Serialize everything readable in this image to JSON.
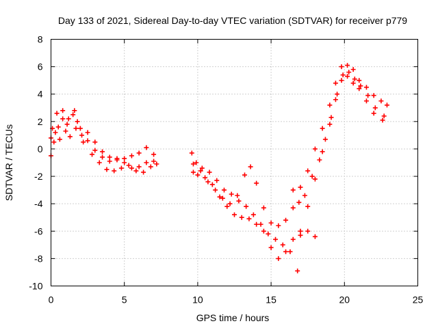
{
  "chart_data": {
    "type": "scatter",
    "title": "Day 133 of 2021, Sidereal Day-to-day VTEC variation (SDTVAR) for receiver p779",
    "xlabel": "GPS time / hours",
    "ylabel": "SDTVAR / TECUs",
    "xlim": [
      0,
      25
    ],
    "ylim": [
      -10,
      8
    ],
    "xticks": [
      0,
      5,
      10,
      15,
      20,
      25
    ],
    "yticks": [
      -10,
      -8,
      -6,
      -4,
      -2,
      0,
      2,
      4,
      6,
      8
    ],
    "grid": true,
    "marker": "plus",
    "color": "#ff0000",
    "series": [
      {
        "points": [
          [
            0.0,
            -0.5
          ],
          [
            0.2,
            0.5
          ],
          [
            0.5,
            1.6
          ],
          [
            0.8,
            2.2
          ],
          [
            1.1,
            1.8
          ],
          [
            1.5,
            2.5
          ],
          [
            1.8,
            2.0
          ],
          [
            2.1,
            1.0
          ],
          [
            2.5,
            0.6
          ],
          [
            3.0,
            -0.1
          ],
          [
            3.5,
            -0.6
          ],
          [
            4.0,
            -0.9
          ],
          [
            4.5,
            -0.8
          ],
          [
            5.0,
            -1.0
          ],
          [
            5.5,
            -1.4
          ],
          [
            6.0,
            -1.3
          ],
          [
            6.5,
            -1.0
          ],
          [
            7.0,
            -0.9
          ],
          [
            9.6,
            -0.3
          ],
          [
            9.9,
            -1.0
          ],
          [
            10.3,
            -1.4
          ],
          [
            10.8,
            -1.7
          ],
          [
            11.3,
            -2.3
          ],
          [
            11.8,
            -3.0
          ],
          [
            12.3,
            -3.3
          ],
          [
            12.8,
            -3.8
          ],
          [
            13.3,
            -4.2
          ],
          [
            13.8,
            -4.8
          ],
          [
            14.3,
            -5.5
          ],
          [
            14.8,
            -6.2
          ],
          [
            15.3,
            -6.6
          ],
          [
            15.8,
            -7.0
          ],
          [
            16.3,
            -7.5
          ],
          [
            16.8,
            -8.9
          ],
          [
            17.0,
            -6.0
          ],
          [
            17.5,
            -4.2
          ],
          [
            18.0,
            -2.2
          ],
          [
            18.5,
            -0.2
          ],
          [
            19.0,
            1.8
          ],
          [
            19.4,
            3.6
          ],
          [
            19.8,
            5.0
          ],
          [
            20.2,
            5.3
          ],
          [
            20.6,
            4.8
          ],
          [
            21.0,
            4.4
          ],
          [
            21.5,
            3.5
          ],
          [
            22.0,
            2.6
          ],
          [
            22.6,
            2.1
          ]
        ]
      },
      {
        "points": [
          [
            0.1,
            1.5
          ],
          [
            0.4,
            2.6
          ],
          [
            0.8,
            2.8
          ],
          [
            1.2,
            2.2
          ],
          [
            1.6,
            2.8
          ],
          [
            2.0,
            1.5
          ],
          [
            2.5,
            1.2
          ],
          [
            3.0,
            0.5
          ],
          [
            3.5,
            -0.2
          ],
          [
            4.0,
            -0.6
          ],
          [
            4.5,
            -0.7
          ],
          [
            5.0,
            -0.7
          ],
          [
            5.5,
            -0.5
          ],
          [
            6.0,
            -0.3
          ],
          [
            6.5,
            0.1
          ],
          [
            7.0,
            -0.4
          ],
          [
            9.7,
            -1.7
          ],
          [
            10.0,
            -1.9
          ],
          [
            10.5,
            -2.1
          ],
          [
            11.0,
            -2.6
          ],
          [
            11.5,
            -3.5
          ],
          [
            12.0,
            -4.2
          ],
          [
            12.5,
            -4.8
          ],
          [
            13.0,
            -5.0
          ],
          [
            13.5,
            -5.1
          ],
          [
            14.0,
            -5.5
          ],
          [
            14.5,
            -6.0
          ],
          [
            15.0,
            -7.2
          ],
          [
            15.5,
            -8.0
          ],
          [
            16.0,
            -7.5
          ],
          [
            16.5,
            -6.6
          ],
          [
            17.0,
            -6.3
          ],
          [
            17.5,
            -6.0
          ],
          [
            18.0,
            -6.4
          ],
          [
            16.5,
            -3.0
          ],
          [
            17.0,
            -2.8
          ],
          [
            17.5,
            -1.6
          ],
          [
            18.0,
            0.0
          ],
          [
            18.5,
            1.5
          ],
          [
            19.0,
            3.2
          ],
          [
            19.4,
            4.8
          ],
          [
            19.8,
            6.0
          ],
          [
            20.2,
            6.1
          ],
          [
            20.6,
            5.8
          ],
          [
            21.0,
            5.0
          ],
          [
            21.5,
            4.5
          ],
          [
            22.0,
            3.9
          ],
          [
            22.5,
            3.5
          ],
          [
            22.9,
            3.2
          ]
        ]
      },
      {
        "points": [
          [
            0.0,
            0.8
          ],
          [
            0.3,
            1.2
          ],
          [
            0.6,
            0.7
          ],
          [
            1.0,
            1.3
          ],
          [
            1.3,
            0.9
          ],
          [
            1.7,
            1.5
          ],
          [
            2.2,
            0.5
          ],
          [
            2.8,
            -0.4
          ],
          [
            3.3,
            -1.0
          ],
          [
            3.8,
            -1.5
          ],
          [
            4.3,
            -1.6
          ],
          [
            4.8,
            -1.4
          ],
          [
            5.3,
            -1.2
          ],
          [
            5.8,
            -1.6
          ],
          [
            6.3,
            -1.7
          ],
          [
            6.8,
            -1.3
          ],
          [
            7.2,
            -1.1
          ],
          [
            9.7,
            -1.1
          ],
          [
            10.2,
            -1.6
          ],
          [
            10.7,
            -2.4
          ],
          [
            11.2,
            -3.0
          ],
          [
            11.7,
            -3.6
          ],
          [
            12.2,
            -4.0
          ],
          [
            12.7,
            -3.4
          ],
          [
            13.2,
            -1.9
          ],
          [
            13.6,
            -1.3
          ],
          [
            14.0,
            -2.5
          ],
          [
            14.5,
            -4.3
          ],
          [
            15.0,
            -5.4
          ],
          [
            15.5,
            -5.6
          ],
          [
            16.0,
            -5.2
          ],
          [
            16.5,
            -4.3
          ],
          [
            16.9,
            -3.9
          ],
          [
            17.3,
            -3.4
          ],
          [
            17.8,
            -2.0
          ],
          [
            18.3,
            -0.8
          ],
          [
            18.7,
            0.7
          ],
          [
            19.1,
            2.3
          ],
          [
            19.5,
            4.0
          ],
          [
            19.9,
            5.4
          ],
          [
            20.3,
            5.6
          ],
          [
            20.7,
            5.1
          ],
          [
            21.1,
            4.6
          ],
          [
            21.6,
            3.9
          ],
          [
            22.1,
            3.0
          ],
          [
            22.7,
            2.4
          ]
        ]
      }
    ]
  }
}
